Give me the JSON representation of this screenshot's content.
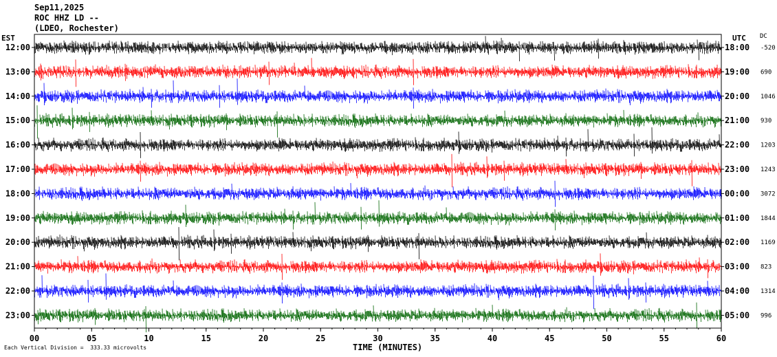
{
  "header": {
    "date": "Sep11,2025",
    "station": "ROC HHZ LD --",
    "location": "(LDEO, Rochester)"
  },
  "left_axis_label": "EST",
  "right_axis_label": "UTC",
  "dc_label": "DC",
  "chart_data": {
    "type": "line",
    "xlabel": "TIME (MINUTES)",
    "xlim": [
      0,
      60
    ],
    "x_ticks": [
      "00",
      "05",
      "10",
      "15",
      "20",
      "25",
      "30",
      "35",
      "40",
      "45",
      "50",
      "55",
      "60"
    ],
    "color_cycle": [
      "#000000",
      "#ff0000",
      "#0000ff",
      "#006400"
    ],
    "rows": [
      {
        "est": "12:00",
        "utc": "18:00",
        "dc": "-520"
      },
      {
        "est": "13:00",
        "utc": "19:00",
        "dc": "690"
      },
      {
        "est": "14:00",
        "utc": "20:00",
        "dc": "1046"
      },
      {
        "est": "15:00",
        "utc": "21:00",
        "dc": "930"
      },
      {
        "est": "16:00",
        "utc": "22:00",
        "dc": "1203"
      },
      {
        "est": "17:00",
        "utc": "23:00",
        "dc": "1243"
      },
      {
        "est": "18:00",
        "utc": "00:00",
        "dc": "3072"
      },
      {
        "est": "19:00",
        "utc": "01:00",
        "dc": "1844"
      },
      {
        "est": "20:00",
        "utc": "02:00",
        "dc": "1169"
      },
      {
        "est": "21:00",
        "utc": "03:00",
        "dc": "823"
      },
      {
        "est": "22:00",
        "utc": "04:00",
        "dc": "1314"
      },
      {
        "est": "23:00",
        "utc": "05:00",
        "dc": "996"
      }
    ],
    "footnote": "Each Vertical Division =  333.33 microvolts"
  }
}
